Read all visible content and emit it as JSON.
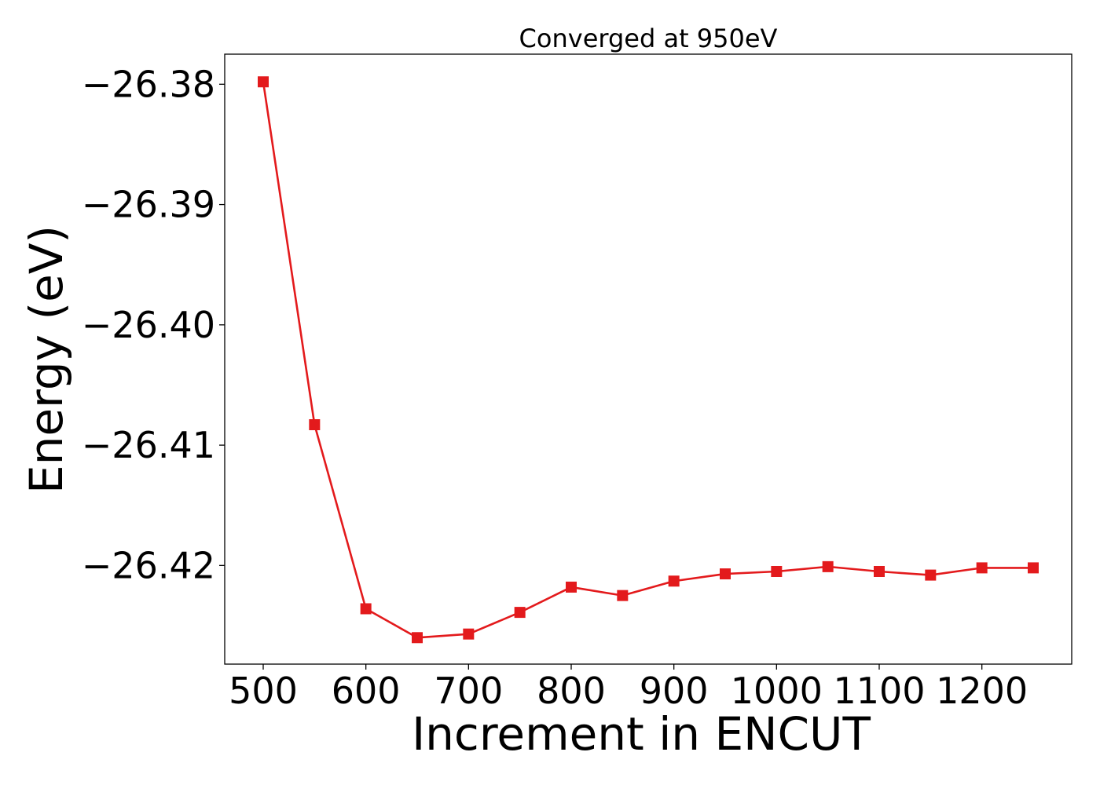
{
  "chart_data": {
    "type": "line",
    "title": "Converged at 950eV",
    "xlabel": "Increment in ENCUT",
    "ylabel": "Energy (eV)",
    "xlim": [
      462.5,
      1287.5
    ],
    "ylim": [
      -26.4282,
      -26.3775
    ],
    "xticks": [
      500,
      600,
      700,
      800,
      900,
      1000,
      1100,
      1200
    ],
    "xtick_labels": [
      "500",
      "600",
      "700",
      "800",
      "900",
      "1000",
      "1100",
      "1200"
    ],
    "yticks": [
      -26.38,
      -26.39,
      -26.4,
      -26.41,
      -26.42
    ],
    "ytick_labels": [
      "−26.38",
      "−26.39",
      "−26.40",
      "−26.41",
      "−26.42"
    ],
    "grid": false,
    "series": [
      {
        "color": "#e31a1c",
        "marker": "square",
        "x": [
          500,
          550,
          600,
          650,
          700,
          750,
          800,
          850,
          900,
          950,
          1000,
          1050,
          1100,
          1150,
          1200,
          1250
        ],
        "y": [
          -26.3798,
          -26.4083,
          -26.4236,
          -26.426,
          -26.4257,
          -26.4239,
          -26.4218,
          -26.4225,
          -26.4213,
          -26.4207,
          -26.4205,
          -26.4201,
          -26.4205,
          -26.4208,
          -26.4202,
          -26.4202
        ]
      }
    ]
  }
}
